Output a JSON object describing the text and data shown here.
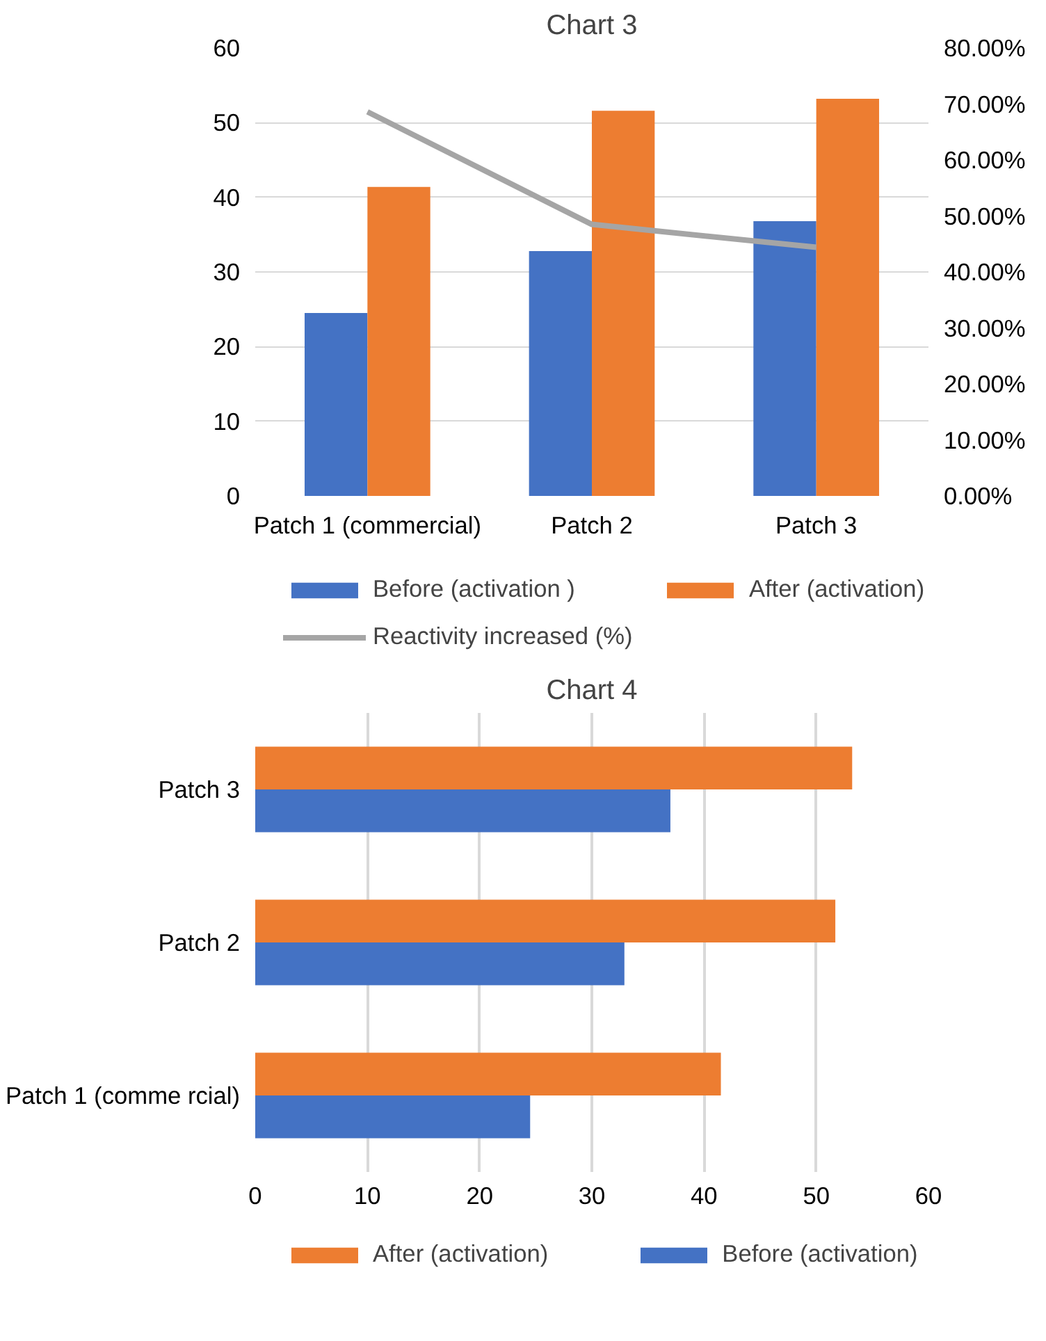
{
  "chart_data": [
    {
      "type": "bar",
      "title": "Chart 3",
      "categories": [
        "Patch 1 (commercial)",
        "Patch 2",
        "Patch 3"
      ],
      "series": [
        {
          "name": "Before (activation )",
          "color": "#4472c4",
          "values": [
            24.5,
            32.8,
            36.8
          ]
        },
        {
          "name": "After (activation)",
          "color": "#ed7d31",
          "values": [
            41.4,
            51.6,
            53.2
          ]
        },
        {
          "name": "Reactivity increased (%)",
          "color": "#a5a5a5",
          "type": "line",
          "axis": "y2",
          "values": [
            68.6,
            48.5,
            44.4
          ]
        }
      ],
      "ylim": [
        0,
        60
      ],
      "yticks": [
        0,
        10,
        20,
        30,
        40,
        50,
        60
      ],
      "y2lim": [
        0,
        80
      ],
      "y2ticks": [
        {
          "value": 0,
          "label": "0.00%"
        },
        {
          "value": 10,
          "label": "10.00%"
        },
        {
          "value": 20,
          "label": "20.00%"
        },
        {
          "value": 30,
          "label": "30.00%"
        },
        {
          "value": 40,
          "label": "40.00%"
        },
        {
          "value": 50,
          "label": "50.00%"
        },
        {
          "value": 60,
          "label": "60.00%"
        },
        {
          "value": 70,
          "label": "70.00%"
        },
        {
          "value": 80,
          "label": "80.00%"
        }
      ],
      "grid": "y",
      "legend": "bottom"
    },
    {
      "type": "bar",
      "title": "Chart 4",
      "orientation": "horizontal",
      "categories": [
        "Patch 3",
        "Patch 2",
        "Patch 1 (comme rcial)"
      ],
      "series": [
        {
          "name": "After (activation)",
          "color": "#ed7d31",
          "values": [
            53.2,
            51.7,
            41.5
          ]
        },
        {
          "name": "Before (activation)",
          "color": "#4472c4",
          "values": [
            37.0,
            32.9,
            24.5
          ]
        }
      ],
      "xlim": [
        0,
        60
      ],
      "xticks": [
        0,
        10,
        20,
        30,
        40,
        50,
        60
      ],
      "grid": "x",
      "legend": "bottom"
    }
  ]
}
